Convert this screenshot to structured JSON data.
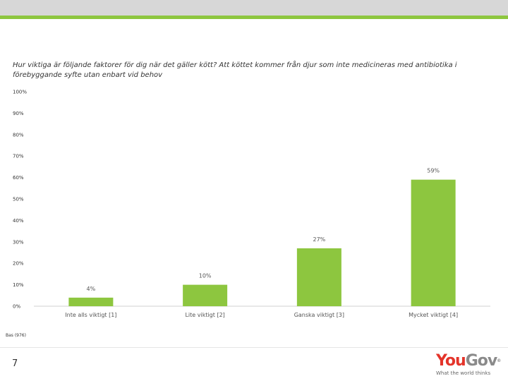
{
  "page": {
    "question": "Hur viktiga är följande faktorer för dig när det gäller kött? Att köttet kommer från djur som inte medicineras med antibiotika i förebyggande syfte utan enbart vid behov",
    "base": "Bas (976)",
    "page_number": "7"
  },
  "logo": {
    "you": "You",
    "gov": "Gov",
    "reg": "®",
    "tagline": "What the world thinks"
  },
  "colors": {
    "bar": "#8dc63f",
    "accent": "#8dc63f",
    "topbar": "#d7d7d7",
    "logo_red": "#e4342a"
  },
  "chart_data": {
    "type": "bar",
    "categories": [
      "Inte alls viktigt [1]",
      "Lite viktigt [2]",
      "Ganska viktigt [3]",
      "Mycket viktigt [4]"
    ],
    "values": [
      4,
      10,
      27,
      59
    ],
    "data_labels": [
      "4%",
      "10%",
      "27%",
      "59%"
    ],
    "yticks": [
      "0%",
      "10%",
      "20%",
      "30%",
      "40%",
      "50%",
      "60%",
      "70%",
      "80%",
      "90%",
      "100%"
    ],
    "ylim": [
      0,
      100
    ],
    "title": "",
    "xlabel": "",
    "ylabel": "",
    "grid": false,
    "legend": "none"
  }
}
